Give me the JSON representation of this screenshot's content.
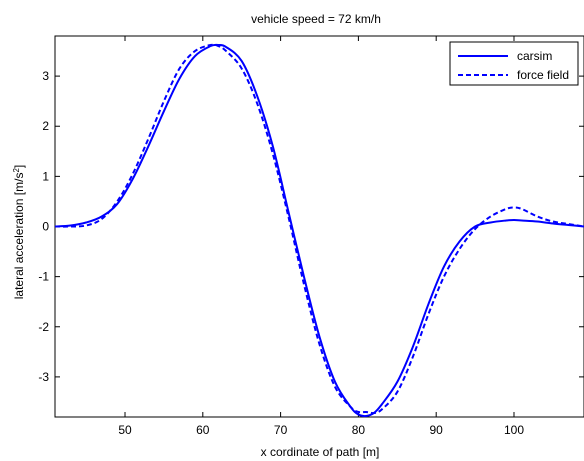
{
  "chart_data": {
    "type": "line",
    "title": "vehicle speed = 72 km/h",
    "xlabel": "x cordinate of path [m]",
    "ylabel_base": "lateral acceleration [m/s",
    "ylabel_sup": "2",
    "ylabel_close": "]",
    "xlim": [
      41,
      109
    ],
    "ylim": [
      -3.8,
      3.8
    ],
    "xticks": [
      50,
      60,
      70,
      80,
      90,
      100
    ],
    "yticks": [
      -3,
      -2,
      -1,
      0,
      1,
      2,
      3
    ],
    "xtick_labels": [
      "50",
      "60",
      "70",
      "80",
      "90",
      "100"
    ],
    "ytick_labels": [
      "-3",
      "-2",
      "-1",
      "0",
      "1",
      "2",
      "3"
    ],
    "grid": false,
    "legend_position": "top-right",
    "series": [
      {
        "name": "carsim",
        "color": "#0000ff",
        "dash": "solid",
        "x": [
          41,
          43,
          45,
          47,
          49,
          51,
          53,
          55,
          57,
          59,
          61,
          62,
          63,
          65,
          67,
          69,
          71,
          73,
          75,
          77,
          79,
          80,
          81,
          82,
          83,
          85,
          87,
          89,
          91,
          93,
          95,
          97,
          99,
          100,
          101,
          103,
          105,
          107,
          109
        ],
        "y": [
          0.0,
          0.02,
          0.08,
          0.2,
          0.45,
          0.95,
          1.6,
          2.3,
          2.95,
          3.4,
          3.6,
          3.62,
          3.58,
          3.3,
          2.6,
          1.6,
          0.3,
          -1.0,
          -2.2,
          -3.1,
          -3.6,
          -3.75,
          -3.78,
          -3.72,
          -3.55,
          -3.1,
          -2.4,
          -1.55,
          -0.8,
          -0.3,
          0.0,
          0.08,
          0.12,
          0.13,
          0.12,
          0.1,
          0.06,
          0.03,
          0.0
        ]
      },
      {
        "name": "force field",
        "color": "#0000ff",
        "dash": "dashed",
        "x": [
          41,
          43,
          45,
          47,
          49,
          51,
          53,
          55,
          57,
          59,
          61,
          62,
          63,
          65,
          67,
          69,
          71,
          73,
          75,
          77,
          79,
          80,
          81,
          82,
          83,
          85,
          87,
          89,
          91,
          93,
          95,
          97,
          99,
          100,
          101,
          103,
          105,
          107,
          109
        ],
        "y": [
          0.0,
          0.0,
          0.02,
          0.15,
          0.5,
          1.05,
          1.75,
          2.5,
          3.15,
          3.5,
          3.62,
          3.6,
          3.5,
          3.15,
          2.45,
          1.45,
          0.2,
          -1.15,
          -2.35,
          -3.2,
          -3.6,
          -3.7,
          -3.7,
          -3.72,
          -3.65,
          -3.3,
          -2.6,
          -1.75,
          -1.0,
          -0.45,
          -0.05,
          0.2,
          0.35,
          0.38,
          0.35,
          0.2,
          0.1,
          0.05,
          0.0
        ]
      }
    ]
  }
}
